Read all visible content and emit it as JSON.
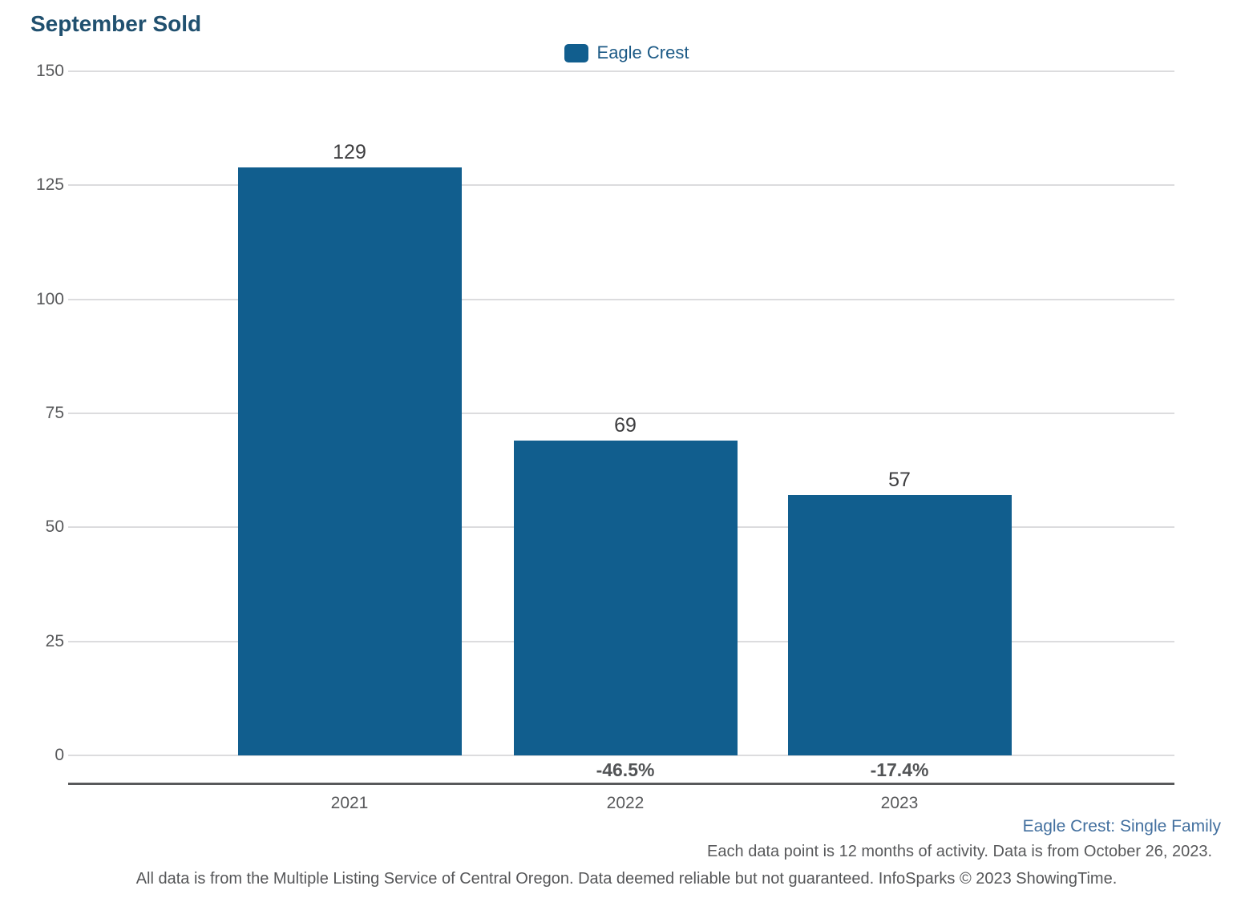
{
  "title": "September Sold",
  "legend": {
    "label": "Eagle Crest",
    "swatch_color": "#115E8E"
  },
  "chart_data": {
    "type": "bar",
    "title": "September Sold",
    "categories": [
      "2021",
      "2022",
      "2023"
    ],
    "series": [
      {
        "name": "Eagle Crest",
        "values": [
          129,
          69,
          57
        ]
      }
    ],
    "pct_change_labels": [
      "",
      "-46.5%",
      "-17.4%"
    ],
    "xlabel": "",
    "ylabel": "",
    "ylim": [
      0,
      150
    ],
    "yticks": [
      0,
      25,
      50,
      75,
      100,
      125,
      150
    ],
    "grid": true,
    "legend_position": "top-center",
    "bar_color": "#115E8E"
  },
  "footer": {
    "segment_label": "Eagle Crest: Single Family",
    "data_note": "Each data point is 12 months of activity. Data is from October 26, 2023.",
    "disclaimer": "All data is from the Multiple Listing Service of Central Oregon. Data deemed reliable but not guaranteed. InfoSparks © 2023 ShowingTime."
  },
  "colors": {
    "bar": "#115E8E",
    "title_text": "#20506F",
    "legend_text": "#1C5A86",
    "axis_text": "#58595B",
    "segment_text": "#43709F",
    "gridline": "#DCDCDE",
    "axis_line": "#58595B"
  }
}
